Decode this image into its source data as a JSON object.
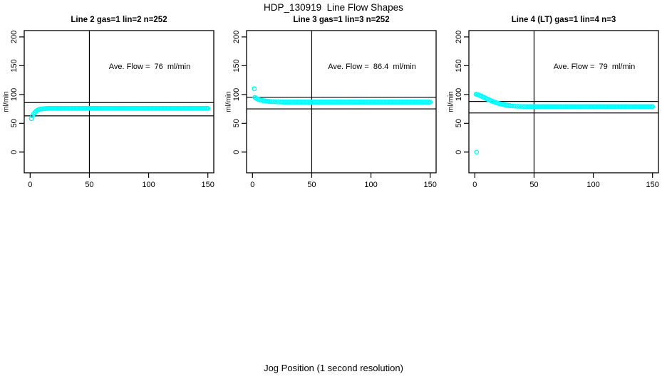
{
  "page": {
    "main_title": "HDP_130919  Line Flow Shapes",
    "x_axis_label": "Jog Position (1 second resolution)",
    "background_color": "#ffffff",
    "axis_color": "#000000"
  },
  "chart_data": [
    {
      "type": "scatter",
      "title": "Line 2 gas=1 lin=2 n=252",
      "annotation": "Ave. Flow =  76  ml/min",
      "ave_flow": 76,
      "ylabel": "ml/min",
      "point_color": "#00ffff",
      "xticks": [
        0,
        50,
        100,
        150
      ],
      "yticks": [
        0,
        50,
        100,
        150,
        200
      ],
      "xlim": [
        -5,
        155
      ],
      "ylim": [
        -36,
        211
      ],
      "vline_x": 50,
      "ref_lines": [
        86,
        63
      ],
      "points": [
        [
          1,
          58
        ],
        [
          2,
          63
        ],
        [
          3,
          66.5
        ],
        [
          4,
          69
        ],
        [
          5,
          71
        ],
        [
          6,
          72.5
        ],
        [
          7,
          73.5
        ],
        [
          8,
          74.2
        ],
        [
          9,
          74.7
        ],
        [
          10,
          75
        ],
        [
          11,
          75.3
        ],
        [
          12,
          75.5
        ],
        [
          13,
          75.6
        ],
        [
          14,
          75.8
        ]
      ],
      "plateau": {
        "from": 15,
        "to": 150,
        "step": 1,
        "y": 76
      }
    },
    {
      "type": "scatter",
      "title": "Line 3 gas=1 lin=3 n=252",
      "annotation": "Ave. Flow =  86.4  ml/min",
      "ave_flow": 86.4,
      "ylabel": "ml/min",
      "point_color": "#00ffff",
      "xticks": [
        0,
        50,
        100,
        150
      ],
      "yticks": [
        0,
        50,
        100,
        150,
        200
      ],
      "xlim": [
        -5,
        155
      ],
      "ylim": [
        -36,
        211
      ],
      "vline_x": 50,
      "ref_lines": [
        95,
        75
      ],
      "points": [
        [
          1.5,
          110
        ],
        [
          2,
          95
        ],
        [
          3,
          93.5
        ],
        [
          4,
          92.5
        ],
        [
          5,
          91.5
        ],
        [
          6,
          90.8
        ],
        [
          7,
          90.2
        ],
        [
          8,
          89.7
        ],
        [
          9,
          89.3
        ],
        [
          10,
          89
        ],
        [
          11,
          88.7
        ],
        [
          12,
          88.4
        ],
        [
          13,
          88.2
        ],
        [
          14,
          88
        ],
        [
          15,
          87.8
        ],
        [
          16,
          87.6
        ],
        [
          18,
          87.4
        ],
        [
          20,
          87.2
        ],
        [
          22,
          87.1
        ],
        [
          24,
          87
        ]
      ],
      "plateau": {
        "from": 25,
        "to": 150,
        "step": 1,
        "y": 86.8
      }
    },
    {
      "type": "scatter",
      "title": "Line 4 (LT) gas=1 lin=4 n=3",
      "annotation": "Ave. Flow =  79  ml/min",
      "ave_flow": 79,
      "ylabel": "ml/min",
      "point_color": "#00ffff",
      "xticks": [
        0,
        50,
        100,
        150
      ],
      "yticks": [
        0,
        50,
        100,
        150,
        200
      ],
      "xlim": [
        -5,
        155
      ],
      "ylim": [
        -36,
        211
      ],
      "vline_x": 50,
      "ref_lines": [
        88,
        68
      ],
      "points": [
        [
          1.5,
          0
        ],
        [
          1,
          100.5
        ],
        [
          2,
          100
        ],
        [
          3,
          99.3
        ],
        [
          4,
          98.5
        ],
        [
          5,
          97.6
        ],
        [
          6,
          96.7
        ],
        [
          7,
          95.7
        ],
        [
          8,
          94.7
        ],
        [
          9,
          93.7
        ],
        [
          10,
          92.7
        ],
        [
          11,
          91.7
        ],
        [
          12,
          90.8
        ],
        [
          13,
          89.9
        ],
        [
          14,
          89
        ],
        [
          15,
          88.2
        ],
        [
          16,
          87.4
        ],
        [
          17,
          86.6
        ],
        [
          18,
          85.9
        ],
        [
          19,
          85.2
        ],
        [
          20,
          84.6
        ],
        [
          21,
          84
        ],
        [
          22,
          83.5
        ],
        [
          23,
          83
        ],
        [
          24,
          82.5
        ],
        [
          25,
          82.1
        ],
        [
          26,
          81.7
        ],
        [
          27,
          81.4
        ],
        [
          28,
          81.1
        ],
        [
          29,
          80.8
        ],
        [
          30,
          80.5
        ],
        [
          32,
          80.1
        ],
        [
          34,
          79.8
        ],
        [
          36,
          79.5
        ],
        [
          38,
          79.3
        ],
        [
          40,
          79.2
        ],
        [
          42,
          79.1
        ]
      ],
      "plateau": {
        "from": 43,
        "to": 150,
        "step": 1,
        "y": 79
      }
    }
  ]
}
